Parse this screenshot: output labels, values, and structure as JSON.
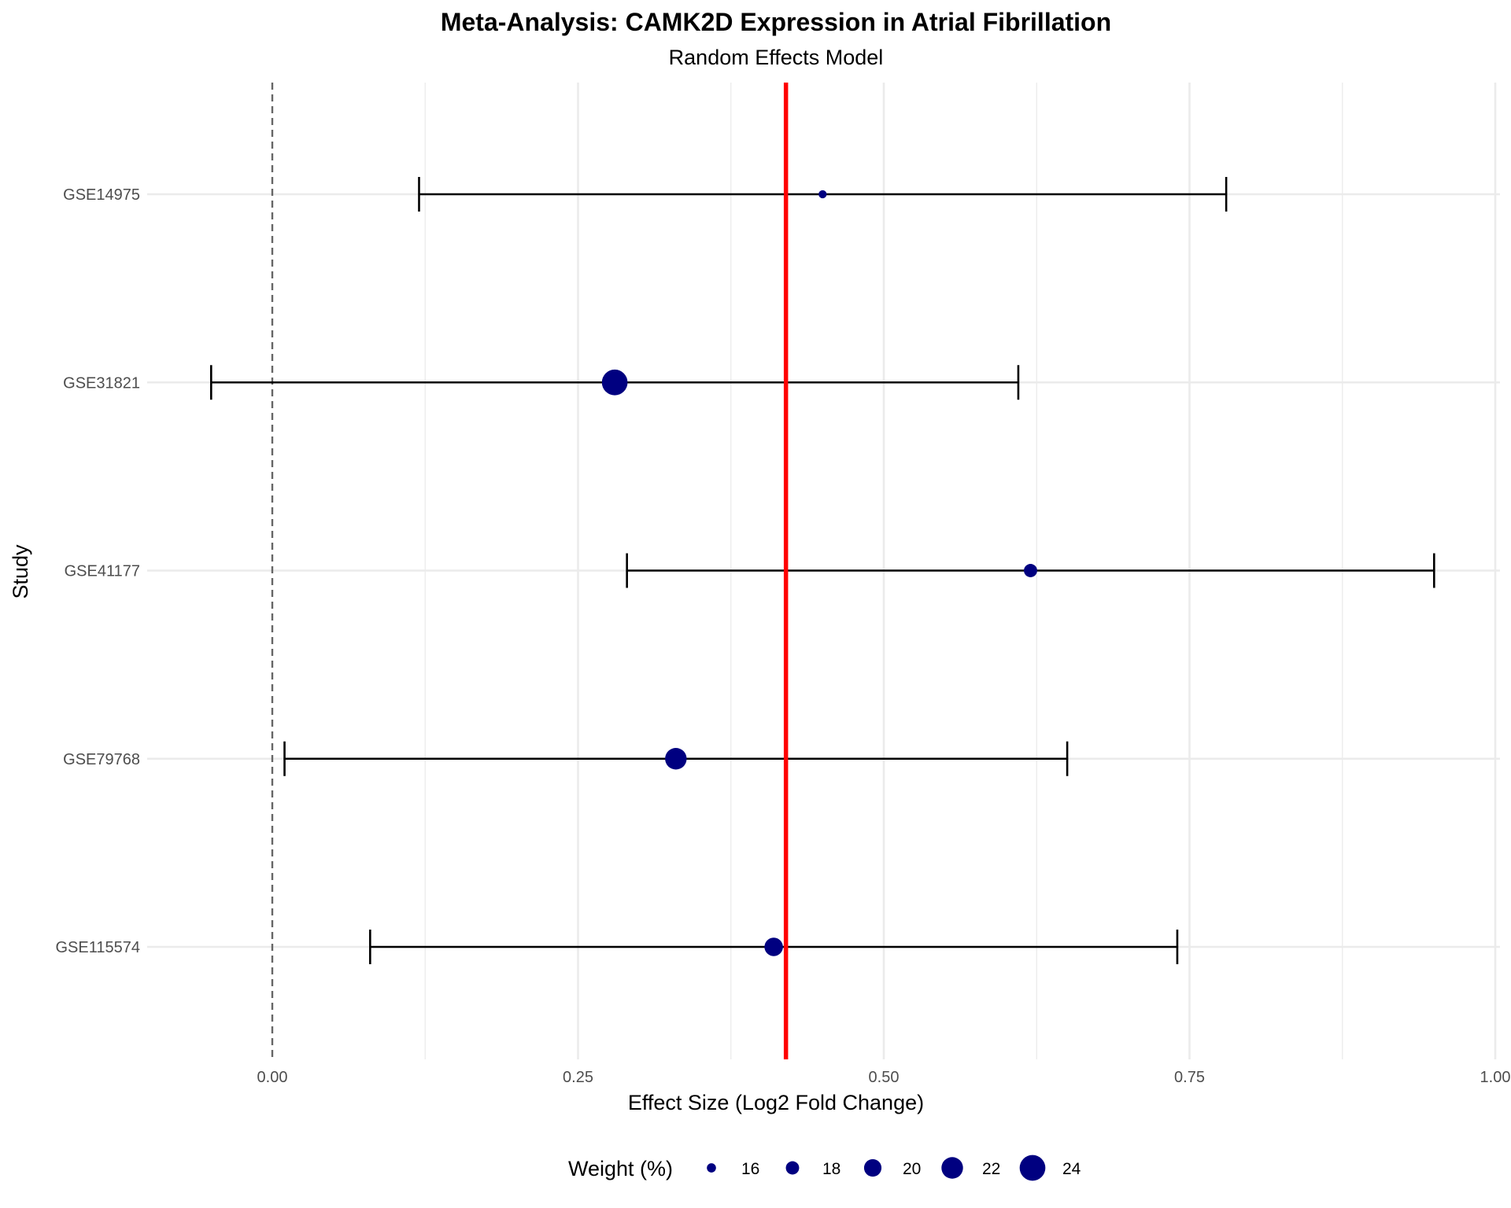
{
  "chart_data": {
    "type": "forest",
    "title": "Meta-Analysis: CAMK2D Expression in Atrial Fibrillation",
    "subtitle": "Random Effects Model",
    "xlabel": "Effect Size (Log2 Fold Change)",
    "ylabel": "Study",
    "xlim": [
      -0.13,
      1.0
    ],
    "xticks": [
      0.0,
      0.25,
      0.5,
      0.75,
      1.0
    ],
    "xtick_labels": [
      "0.00",
      "0.25",
      "0.50",
      "0.75",
      "1.00"
    ],
    "grid": true,
    "studies": [
      {
        "name": "GSE14975",
        "effect": 0.45,
        "ci_lower": 0.12,
        "ci_upper": 0.78,
        "weight": 15.5
      },
      {
        "name": "GSE31821",
        "effect": 0.28,
        "ci_lower": -0.05,
        "ci_upper": 0.61,
        "weight": 24.0
      },
      {
        "name": "GSE41177",
        "effect": 0.62,
        "ci_lower": 0.29,
        "ci_upper": 0.95,
        "weight": 18.0
      },
      {
        "name": "GSE79768",
        "effect": 0.33,
        "ci_lower": 0.01,
        "ci_upper": 0.65,
        "weight": 22.0
      },
      {
        "name": "GSE115574",
        "effect": 0.41,
        "ci_lower": 0.08,
        "ci_upper": 0.74,
        "weight": 20.5
      }
    ],
    "pooled_effect": 0.42,
    "null_line": 0.0,
    "point_color": "#000080",
    "pooled_line_color": "#ff0000",
    "null_line_color": "#666666",
    "legend": {
      "title": "Weight (%)",
      "position": "bottom",
      "values": [
        16,
        18,
        20,
        22,
        24
      ],
      "labels": [
        "16",
        "18",
        "20",
        "22",
        "24"
      ]
    }
  }
}
